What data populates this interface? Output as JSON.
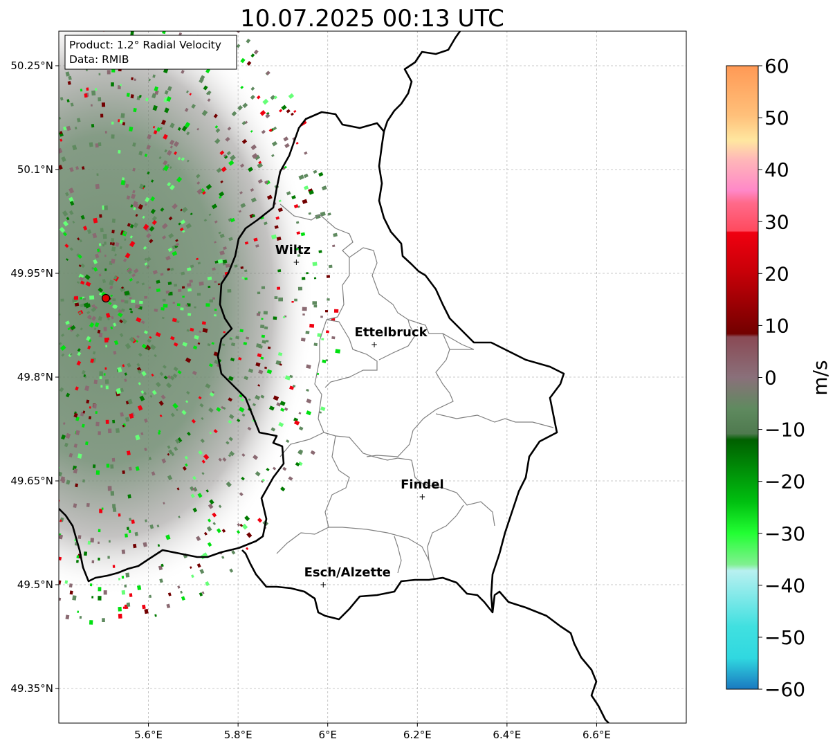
{
  "title": "10.07.2025 00:13 UTC",
  "info": {
    "product_line": "Product: 1.2° Radial Velocity",
    "data_line": "Data: RMIB"
  },
  "axes": {
    "x_ticks": [
      "5.6°E",
      "5.8°E",
      "6°E",
      "6.2°E",
      "6.4°E",
      "6.6°E"
    ],
    "y_ticks": [
      "50.25°N",
      "50.1°N",
      "49.95°N",
      "49.8°N",
      "49.65°N",
      "49.5°N",
      "49.35°N"
    ],
    "lon_range": [
      5.4,
      6.8
    ],
    "lat_range": [
      49.3,
      50.3
    ]
  },
  "cities": [
    {
      "name": "Wiltz",
      "lon": 5.93,
      "lat": 49.966
    },
    {
      "name": "Ettelbruck",
      "lon": 6.104,
      "lat": 49.847
    },
    {
      "name": "Findel",
      "lon": 6.211,
      "lat": 49.627
    },
    {
      "name": "Esch/Alzette",
      "lon": 5.99,
      "lat": 49.5
    }
  ],
  "radar_site": {
    "lon": 5.505,
    "lat": 49.914
  },
  "colorbar": {
    "label": "m/s",
    "ticks": [
      "60",
      "50",
      "40",
      "30",
      "20",
      "10",
      "0",
      "−10",
      "−20",
      "−30",
      "−40",
      "−50",
      "−60"
    ],
    "range": [
      -60,
      60
    ],
    "colors": {
      "orange": "#ff9955",
      "peach": "#ffd59a",
      "pink": "#ff88c8",
      "red_pink": "#ff4a5e",
      "red": "#f00010",
      "dark_red": "#720000",
      "brown_gray": "#8a6a72",
      "gray_green": "#5f8a5f",
      "dark_green": "#007a00",
      "green": "#00e010",
      "light_green": "#66ff77",
      "light_cyan": "#b0f0f0",
      "cyan": "#30e0e0",
      "blue": "#2080c8"
    }
  }
}
